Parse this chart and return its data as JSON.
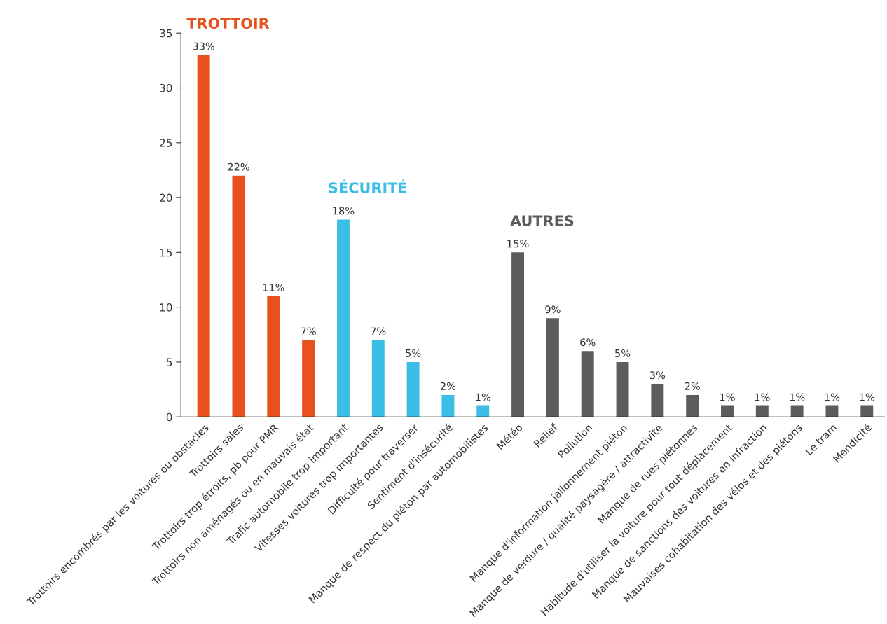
{
  "chart_data": {
    "type": "bar",
    "categories": [
      "Trottoirs encombrés par les voitures ou obstacles",
      "Trottoirs sales",
      "Trottoirs trop étroits, pb pour PMR",
      "Trottoirs non aménagés ou en mauvais état",
      "Trafic automobile trop important",
      "Vitesses voitures trop importantes",
      "Difficulté pour traverser",
      "Sentiment d'insécurité",
      "Manque de respect du piéton par automobilistes",
      "Météo",
      "Relief",
      "Pollution",
      "Manque d'information jallonnement piéton",
      "Manque de verdure / qualité paysagère / attractivité",
      "Manque de rues piétonnes",
      "Habitude d'utiliser la voiture pour tout déplacement",
      "Manque de sanctions des voitures en infraction",
      "Mauvaises cohabitation des vélos et des piétons",
      "Le tram",
      "Mendicité"
    ],
    "series": [
      {
        "name": "TROTTOIR",
        "color": "#e8501e",
        "values": [
          33,
          22,
          11,
          7,
          null,
          null,
          null,
          null,
          null,
          null,
          null,
          null,
          null,
          null,
          null,
          null,
          null,
          null,
          null,
          null
        ],
        "value_labels": [
          "33%",
          "22%",
          "11%",
          "7%",
          null,
          null,
          null,
          null,
          null,
          null,
          null,
          null,
          null,
          null,
          null,
          null,
          null,
          null,
          null,
          null
        ]
      },
      {
        "name": "SÉCURITÉ",
        "color": "#3bbde6",
        "values": [
          null,
          null,
          null,
          null,
          18,
          7,
          5,
          2,
          1,
          null,
          null,
          null,
          null,
          null,
          null,
          null,
          null,
          null,
          null,
          null
        ],
        "value_labels": [
          null,
          null,
          null,
          null,
          "18%",
          "7%",
          "5%",
          "2%",
          "1%",
          null,
          null,
          null,
          null,
          null,
          null,
          null,
          null,
          null,
          null,
          null
        ]
      },
      {
        "name": "AUTRES",
        "color": "#5a5c5e",
        "values": [
          null,
          null,
          null,
          null,
          null,
          null,
          null,
          null,
          null,
          15,
          9,
          6,
          5,
          3,
          2,
          1,
          1,
          1,
          1,
          1
        ],
        "value_labels": [
          null,
          null,
          null,
          null,
          null,
          null,
          null,
          null,
          null,
          "15%",
          "9%",
          "6%",
          "5%",
          "3%",
          "2%",
          "1%",
          "1%",
          "1%",
          "1%",
          "1%"
        ]
      }
    ],
    "ylim": [
      0,
      35
    ],
    "yticks": [
      0,
      5,
      10,
      15,
      20,
      25,
      30,
      35
    ],
    "grid": false,
    "legend": false
  }
}
